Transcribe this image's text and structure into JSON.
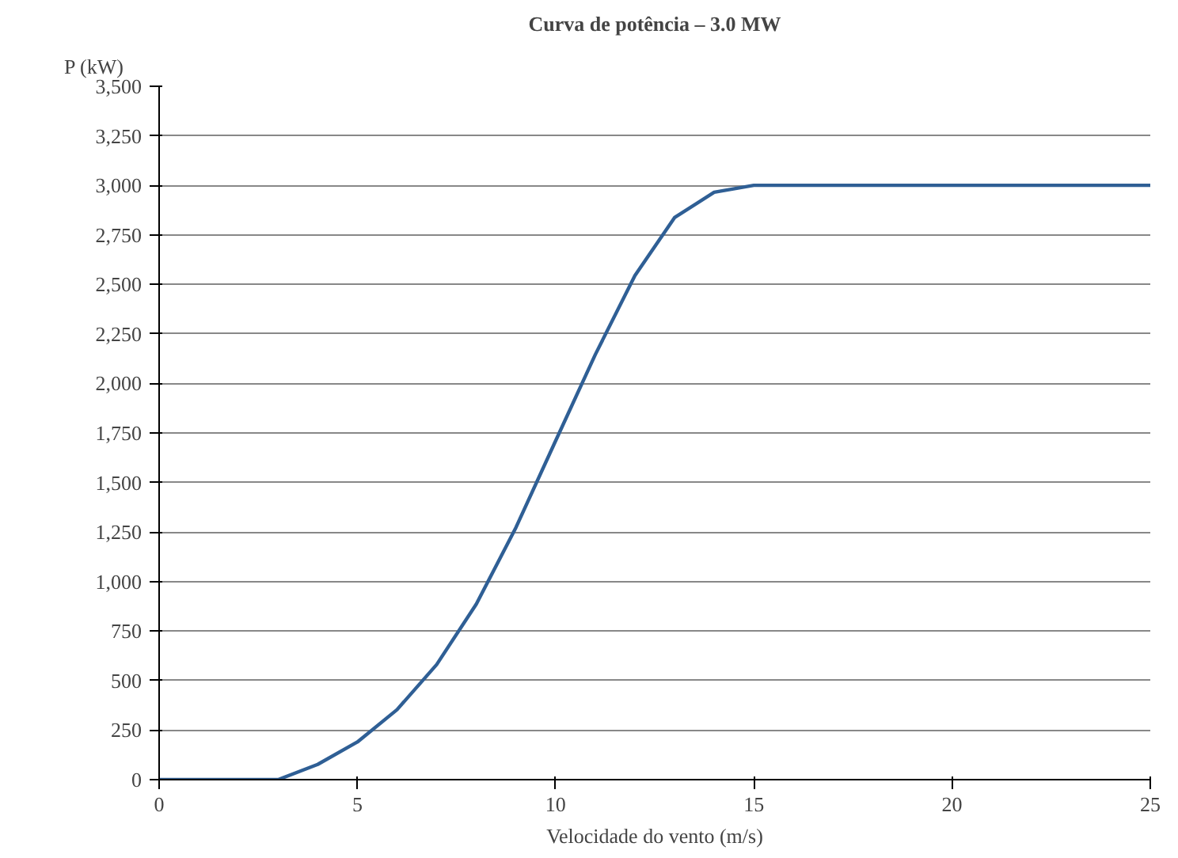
{
  "chart_data": {
    "type": "line",
    "title": "Curva de potência – 3.0 MW",
    "xlabel": "Velocidade do vento (m/s)",
    "ylabel": "P (kW)",
    "x": [
      0,
      1,
      2,
      3,
      4,
      5,
      6,
      7,
      8,
      9,
      10,
      11,
      12,
      13,
      14,
      15,
      16,
      18,
      20,
      22,
      25
    ],
    "series": [
      {
        "color": "#2f5f95",
        "values": [
          0,
          0,
          0,
          0,
          77,
          190,
          353,
          581,
          886,
          1273,
          1710,
          2145,
          2544,
          2837,
          2965,
          3000,
          3000,
          3000,
          3000,
          3000,
          3000
        ]
      }
    ],
    "xlim": [
      0,
      25
    ],
    "xticks": [
      0,
      5,
      10,
      15,
      20,
      25
    ],
    "ylim": [
      0,
      3500
    ],
    "yticks": [
      0,
      250,
      500,
      750,
      {
        "value": 1000,
        "label": "1,000"
      },
      {
        "value": 1250,
        "label": "1,250"
      },
      {
        "value": 1500,
        "label": "1,500"
      },
      {
        "value": 1750,
        "label": "1,750"
      },
      {
        "value": 2000,
        "label": "2,000"
      },
      {
        "value": 2250,
        "label": "2,250"
      },
      {
        "value": 2500,
        "label": "2,500"
      },
      {
        "value": 2750,
        "label": "2,750"
      },
      {
        "value": 3000,
        "label": "3,000"
      },
      {
        "value": 3250,
        "label": "3,250"
      },
      {
        "value": 3500,
        "label": "3,500"
      }
    ],
    "grid": "y",
    "marker": "none",
    "line_style": "solid"
  }
}
